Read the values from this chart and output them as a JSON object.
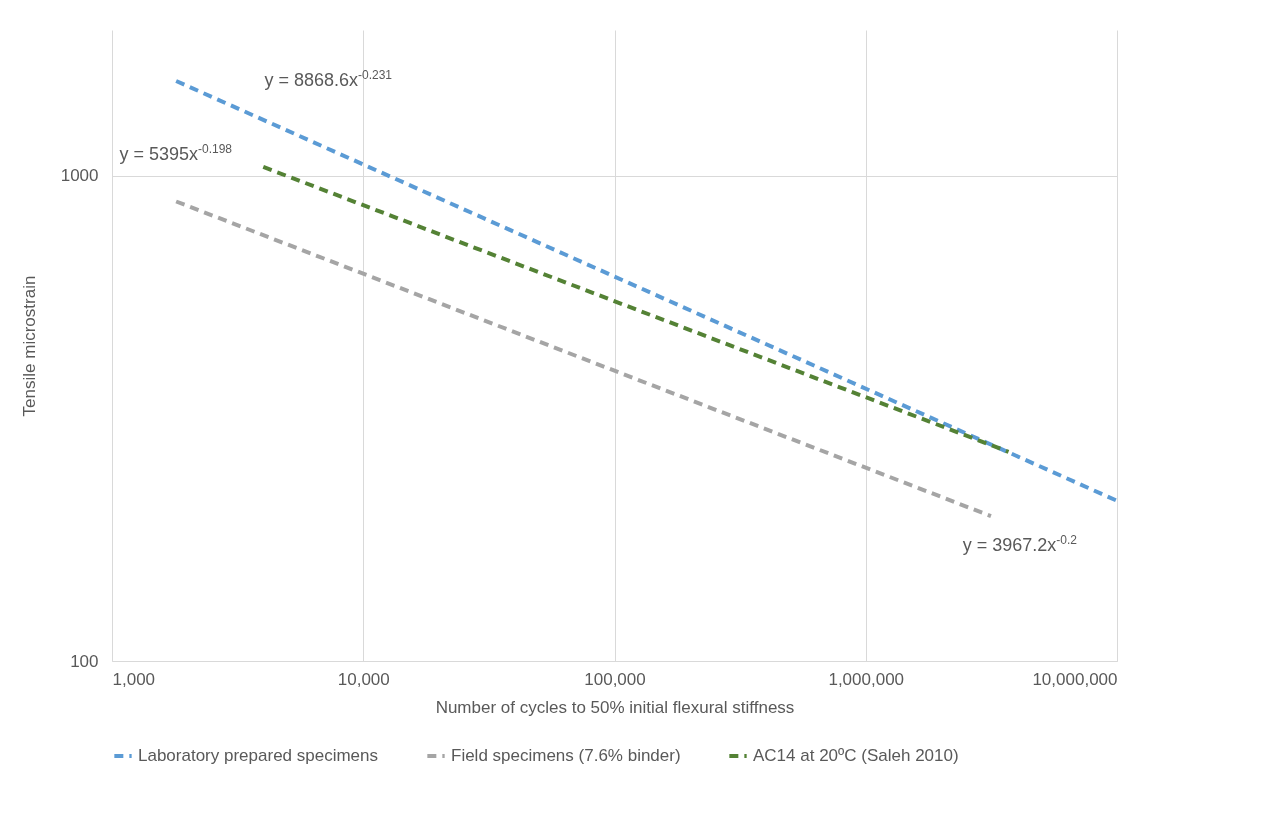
{
  "chart_data": {
    "type": "line",
    "xlabel": "Number of cycles to 50% initial flexural stiffness",
    "ylabel": "Tensile microstrain",
    "log": "xy",
    "grid": true,
    "legend": "bottom",
    "line_style": "dashed",
    "marker": "none",
    "xlim": [
      1000,
      10000000
    ],
    "xticks": [
      {
        "value": 1000,
        "label": "1,000"
      },
      {
        "value": 10000,
        "label": "10,000"
      },
      {
        "value": 100000,
        "label": "100,000"
      },
      {
        "value": 1000000,
        "label": "1,000,000"
      },
      {
        "value": 10000000,
        "label": "10,000,000"
      }
    ],
    "ylim": [
      100,
      2000
    ],
    "yticks": [
      100,
      1000
    ],
    "series": [
      {
        "name": "Laboratory prepared specimens",
        "color": "#5b9bd5",
        "x": [
          1800,
          10000000
        ],
        "values": [
          1570,
          214
        ]
      },
      {
        "name": "Field specimens (7.6% binder)",
        "color": "#a5a5a5",
        "x": [
          1800,
          3150000
        ],
        "values": [
          886,
          199
        ]
      },
      {
        "name": "AC14 at 20ºC (Saleh 2010)",
        "color": "#548235",
        "x": [
          4000,
          3700000
        ],
        "values": [
          1044,
          270
        ]
      }
    ],
    "annotations": [
      "y = 8868.6x$^{-0.231}$",
      "y = 5395x$^{-0.198}$",
      "y = 3967.2x$^{-0.2}$"
    ]
  }
}
